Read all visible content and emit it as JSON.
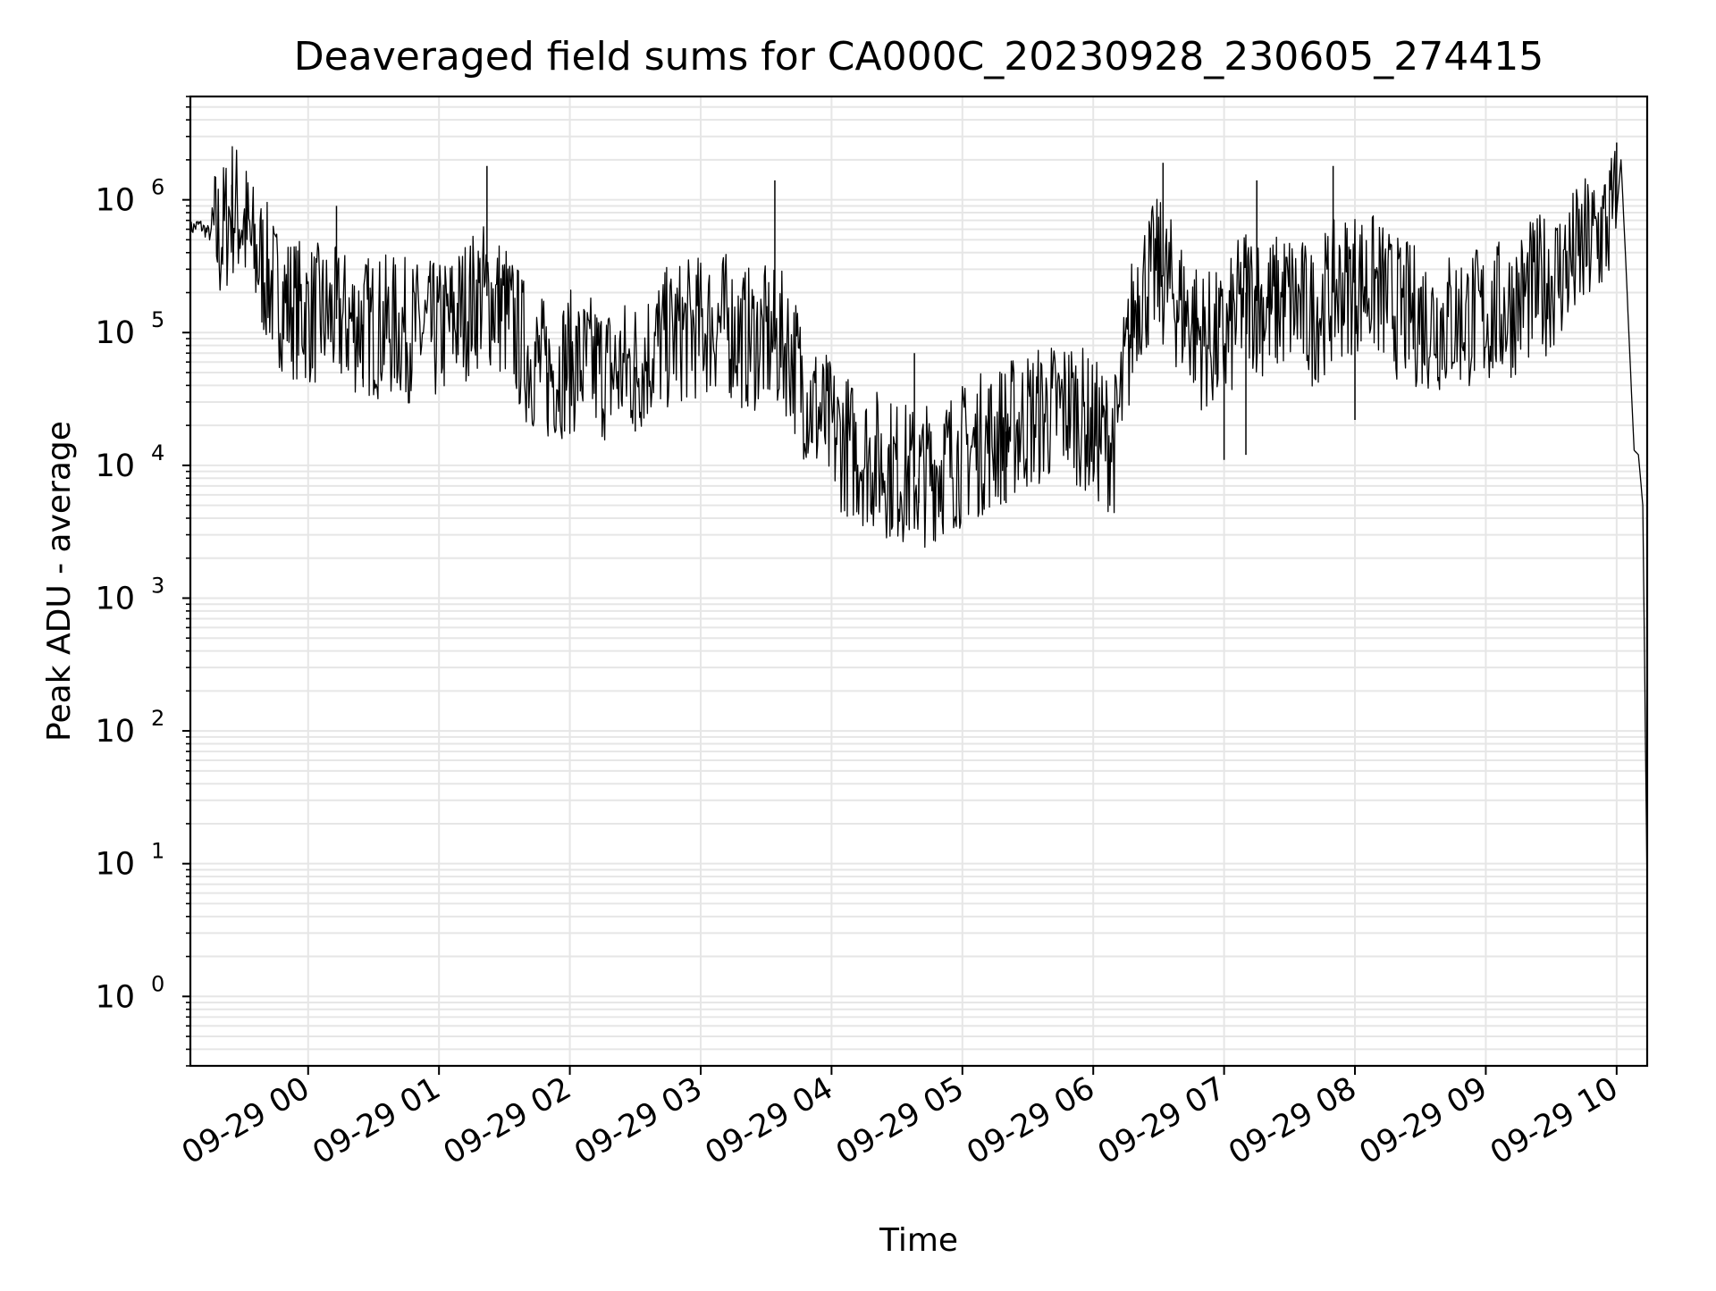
{
  "chart_data": {
    "type": "line",
    "title": "Deaveraged field sums for CA000C_20230928_230605_274415",
    "xlabel": "Time",
    "ylabel": "Peak ADU - average",
    "yscale": "log",
    "ylim": [
      0.3,
      6000000
    ],
    "y_ticks": [
      {
        "value": 1,
        "base": "10",
        "exp": "0"
      },
      {
        "value": 10,
        "base": "10",
        "exp": "1"
      },
      {
        "value": 100,
        "base": "10",
        "exp": "2"
      },
      {
        "value": 1000,
        "base": "10",
        "exp": "3"
      },
      {
        "value": 10000,
        "base": "10",
        "exp": "4"
      },
      {
        "value": 100000,
        "base": "10",
        "exp": "5"
      },
      {
        "value": 1000000,
        "base": "10",
        "exp": "6"
      }
    ],
    "xlim": [
      "09-28 23:06",
      "09-29 10:14"
    ],
    "x_ticks": [
      "09-29 00",
      "09-29 01",
      "09-29 02",
      "09-29 03",
      "09-29 04",
      "09-29 05",
      "09-29 06",
      "09-29 07",
      "09-29 08",
      "09-29 09",
      "09-29 10"
    ],
    "grid": true,
    "legend": "none",
    "line_color": "#000000",
    "series": [
      {
        "x": [
          "09-28 23:06",
          "09-28 23:10",
          "09-28 23:15",
          "09-28 23:20",
          "09-28 23:25",
          "09-28 23:30",
          "09-28 23:35",
          "09-28 23:40",
          "09-28 23:45",
          "09-28 23:50",
          "09-28 23:55",
          "09-29 00:00",
          "09-29 00:10",
          "09-29 00:20",
          "09-29 00:30",
          "09-29 00:40",
          "09-29 00:50",
          "09-29 01:00",
          "09-29 01:10",
          "09-29 01:20",
          "09-29 01:30",
          "09-29 01:40",
          "09-29 01:50",
          "09-29 02:00",
          "09-29 02:10",
          "09-29 02:20",
          "09-29 02:30",
          "09-29 02:40",
          "09-29 02:50",
          "09-29 03:00",
          "09-29 03:10",
          "09-29 03:20",
          "09-29 03:30",
          "09-29 03:40",
          "09-29 03:50",
          "09-29 04:00",
          "09-29 04:10",
          "09-29 04:20",
          "09-29 04:30",
          "09-29 04:40",
          "09-29 04:50",
          "09-29 05:00",
          "09-29 05:10",
          "09-29 05:20",
          "09-29 05:30",
          "09-29 05:40",
          "09-29 05:50",
          "09-29 06:00",
          "09-29 06:10",
          "09-29 06:20",
          "09-29 06:30",
          "09-29 06:40",
          "09-29 06:50",
          "09-29 07:00",
          "09-29 07:10",
          "09-29 07:20",
          "09-29 07:30",
          "09-29 07:40",
          "09-29 07:50",
          "09-29 08:00",
          "09-29 08:10",
          "09-29 08:20",
          "09-29 08:30",
          "09-29 08:40",
          "09-29 08:50",
          "09-29 09:00",
          "09-29 09:10",
          "09-29 09:20",
          "09-29 09:30",
          "09-29 09:40",
          "09-29 09:50",
          "09-29 10:00",
          "09-29 10:02",
          "09-29 10:04",
          "09-29 10:06",
          "09-29 10:08",
          "09-29 10:10",
          "09-29 10:12",
          "09-29 10:14"
        ],
        "y": [
          600000,
          650000,
          550000,
          500000,
          900000,
          700000,
          400000,
          300000,
          200000,
          170000,
          150000,
          140000,
          130000,
          120000,
          110000,
          110000,
          100000,
          100000,
          140000,
          200000,
          150000,
          70000,
          50000,
          60000,
          55000,
          50000,
          55000,
          80000,
          100000,
          110000,
          120000,
          90000,
          90000,
          80000,
          30000,
          18000,
          13000,
          11000,
          9000,
          8000,
          10000,
          12000,
          15000,
          18000,
          22000,
          25000,
          28000,
          18000,
          15000,
          200000,
          300000,
          160000,
          90000,
          80000,
          200000,
          150000,
          180000,
          130000,
          200000,
          250000,
          220000,
          150000,
          130000,
          120000,
          130000,
          130000,
          150000,
          200000,
          250000,
          350000,
          500000,
          800000,
          2000000,
          400000,
          70000,
          13000,
          12000,
          5000,
          6
        ]
      }
    ],
    "spikes": [
      {
        "x": "09-28 23:25",
        "y": 1300000
      },
      {
        "x": "09-29 00:13",
        "y": 900000
      },
      {
        "x": "09-29 01:22",
        "y": 1800000
      },
      {
        "x": "09-29 03:34",
        "y": 1400000
      },
      {
        "x": "09-29 04:38",
        "y": 70000
      },
      {
        "x": "09-29 06:32",
        "y": 1900000
      },
      {
        "x": "09-29 07:15",
        "y": 1400000
      },
      {
        "x": "09-29 07:50",
        "y": 1800000
      },
      {
        "x": "09-29 10:00",
        "y": 2700000
      }
    ],
    "dips": [
      {
        "x": "09-29 00:25",
        "y": 45000
      },
      {
        "x": "09-29 01:50",
        "y": 25000
      },
      {
        "x": "09-29 02:30",
        "y": 18000
      },
      {
        "x": "09-29 04:40",
        "y": 5200
      },
      {
        "x": "09-29 05:20",
        "y": 5200
      },
      {
        "x": "09-29 07:00",
        "y": 11000
      },
      {
        "x": "09-29 07:10",
        "y": 12000
      },
      {
        "x": "09-29 08:00",
        "y": 22000
      }
    ]
  }
}
